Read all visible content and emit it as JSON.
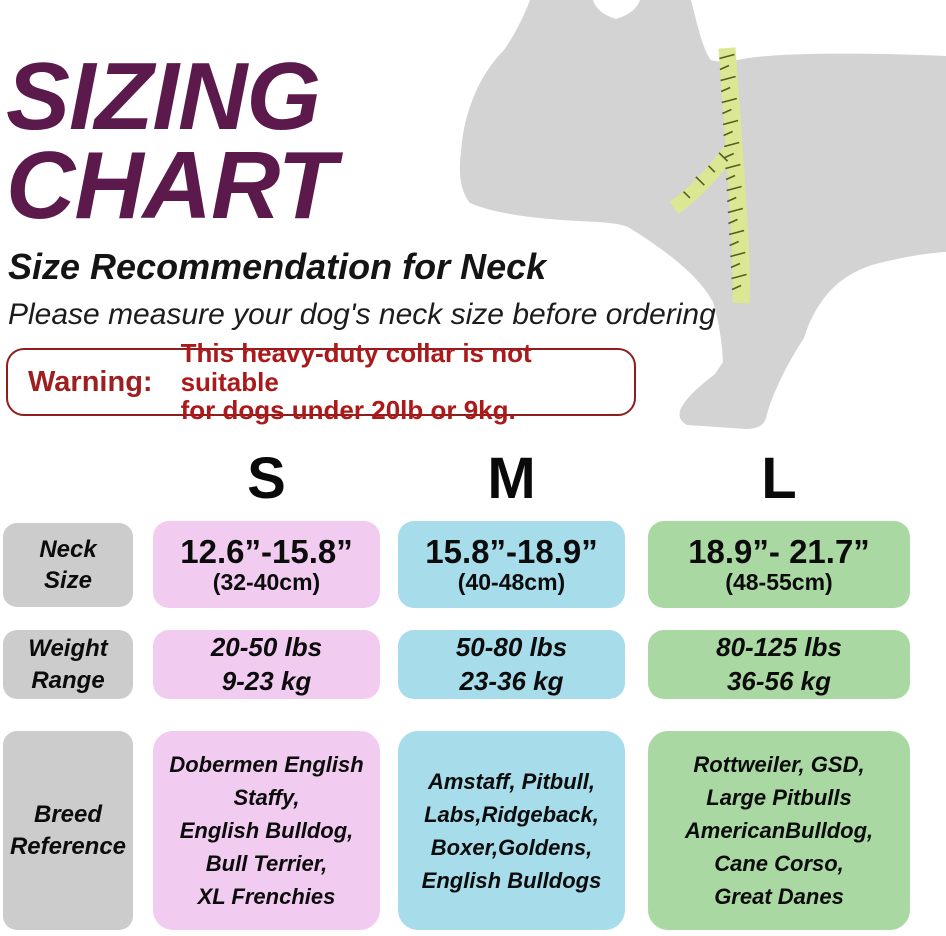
{
  "page": {
    "title": "SIZING\nCHART",
    "subtitle": "Size Recommendation for Neck",
    "note": "Please measure your dog's neck size before ordering"
  },
  "warning": {
    "label": "Warning:",
    "text": "This heavy-duty collar is not suitable\nfor dogs under 20lb or 9kg."
  },
  "graphic": {
    "description": "dog-silhouette-with-measuring-tape",
    "dog_color": "#d3d3d3",
    "tape_color": "#dce794",
    "tape_tick_color": "#565d20"
  },
  "colors": {
    "title": "#5c194c",
    "warning_border": "#8f1d1d",
    "warning_label": "#9e1f1f",
    "warning_text": "#ab1a1a",
    "row_label_cell": "#cccccc",
    "column_s": "#f2ccf0",
    "column_m": "#a7dcea",
    "column_l": "#aad8a2"
  },
  "chart_data": {
    "type": "table",
    "title": "SIZING CHART",
    "subtitle": "Size Recommendation for Neck",
    "columns": [
      "S",
      "M",
      "L"
    ],
    "row_headers": [
      "Neck Size",
      "Weight Range",
      "Breed Reference"
    ],
    "rows": [
      {
        "label": "Neck Size",
        "label_display": "Neck\nSize",
        "values": [
          {
            "inches": "12.6”-15.8”",
            "cm": "(32-40cm)"
          },
          {
            "inches": "15.8”-18.9”",
            "cm": "(40-48cm)"
          },
          {
            "inches": "18.9”- 21.7”",
            "cm": "(48-55cm)"
          }
        ]
      },
      {
        "label": "Weight Range",
        "label_display": "Weight\nRange",
        "values": [
          "20-50 lbs\n9-23 kg",
          "50-80 lbs\n23-36 kg",
          "80-125 lbs\n36-56 kg"
        ]
      },
      {
        "label": "Breed Reference",
        "label_display": "Breed\nReference",
        "values": [
          "Dobermen English\nStaffy,\nEnglish Bulldog,\nBull Terrier,\nXL Frenchies",
          "Amstaff, Pitbull,\nLabs,Ridgeback,\nBoxer,Goldens,\nEnglish Bulldogs",
          "Rottweiler, GSD,\nLarge Pitbulls\nAmericanBulldog,\nCane Corso,\nGreat Danes"
        ]
      }
    ]
  }
}
